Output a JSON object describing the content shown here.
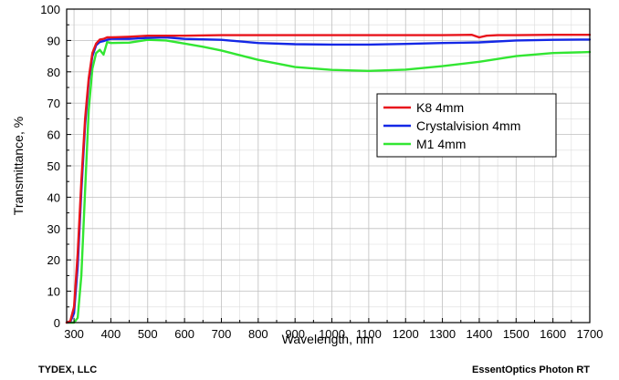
{
  "chart_data": {
    "type": "line",
    "xlabel": "Wavelength, nm",
    "ylabel": "Transmittance, %",
    "xlim": [
      280,
      1700
    ],
    "ylim": [
      0,
      100
    ],
    "x_ticks": [
      300,
      400,
      500,
      600,
      700,
      800,
      900,
      1000,
      1100,
      1200,
      1300,
      1400,
      1500,
      1600,
      1700
    ],
    "y_ticks": [
      0,
      10,
      20,
      30,
      40,
      50,
      60,
      70,
      80,
      90,
      100
    ],
    "grid": true,
    "legend_position": "center-right",
    "series": [
      {
        "name": "K8 4mm",
        "color": "#e8141c",
        "x": [
          280,
          290,
          300,
          310,
          320,
          330,
          340,
          350,
          360,
          370,
          380,
          390,
          400,
          450,
          500,
          600,
          700,
          800,
          900,
          1000,
          1100,
          1200,
          1300,
          1380,
          1400,
          1420,
          1450,
          1500,
          1600,
          1700
        ],
        "y": [
          0,
          0.5,
          5,
          22,
          45,
          65,
          78,
          86,
          89,
          90.3,
          90.5,
          91,
          91,
          91.2,
          91.5,
          91.5,
          91.7,
          91.7,
          91.7,
          91.7,
          91.7,
          91.7,
          91.7,
          91.8,
          91,
          91.5,
          91.7,
          91.7,
          91.8,
          91.8
        ]
      },
      {
        "name": "Crystalvision 4mm",
        "color": "#1428e6",
        "x": [
          280,
          290,
          300,
          310,
          320,
          330,
          340,
          350,
          360,
          370,
          380,
          390,
          400,
          450,
          500,
          550,
          600,
          700,
          800,
          900,
          1000,
          1100,
          1200,
          1300,
          1400,
          1500,
          1600,
          1700
        ],
        "y": [
          0,
          0.2,
          3,
          18,
          42,
          63,
          77,
          85,
          88.5,
          89.5,
          89.8,
          90.2,
          90.5,
          90.5,
          90.8,
          91,
          90.5,
          90.2,
          89.2,
          88.8,
          88.7,
          88.7,
          88.9,
          89.2,
          89.4,
          90,
          90.2,
          90.3
        ]
      },
      {
        "name": "M1 4mm",
        "color": "#32e632",
        "x": [
          280,
          300,
          310,
          320,
          330,
          340,
          350,
          360,
          370,
          380,
          390,
          400,
          450,
          500,
          550,
          600,
          650,
          700,
          800,
          900,
          1000,
          1100,
          1200,
          1300,
          1400,
          1500,
          1600,
          1700
        ],
        "y": [
          0,
          0,
          1.5,
          15,
          42,
          68,
          81,
          86,
          87,
          85.5,
          89.5,
          89.2,
          89.3,
          90.2,
          90,
          89,
          88,
          86.8,
          83.8,
          81.5,
          80.6,
          80.3,
          80.7,
          81.8,
          83.2,
          85,
          86,
          86.3
        ]
      }
    ]
  },
  "footer": {
    "left": "TYDEX, LLC",
    "right": "EssentOptics Photon RT"
  }
}
